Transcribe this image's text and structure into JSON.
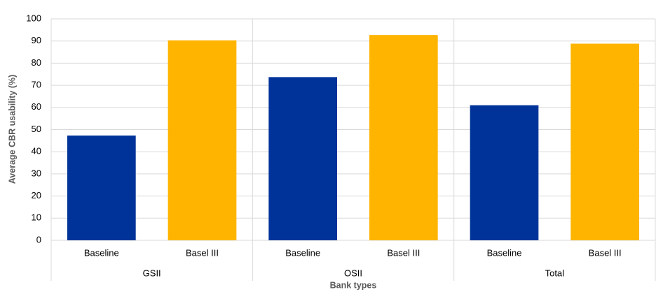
{
  "chart_data": {
    "type": "bar",
    "y_label": "Average CBR usability (%)",
    "x_label": "Bank types",
    "categories": [
      "Baseline",
      "Basel III",
      "Baseline",
      "Basel III",
      "Baseline",
      "Basel III"
    ],
    "groups": [
      "GSII",
      "OSII",
      "Total"
    ],
    "values": [
      47.3,
      90.3,
      73.7,
      92.7,
      61,
      88.8
    ],
    "colors": [
      "#003399",
      "#ffb400",
      "#003399",
      "#ffb400",
      "#003399",
      "#ffb400"
    ],
    "ylim": [
      0,
      100
    ],
    "yticks": [
      0,
      10,
      20,
      30,
      40,
      50,
      60,
      70,
      80,
      90,
      100
    ],
    "grid": true
  }
}
